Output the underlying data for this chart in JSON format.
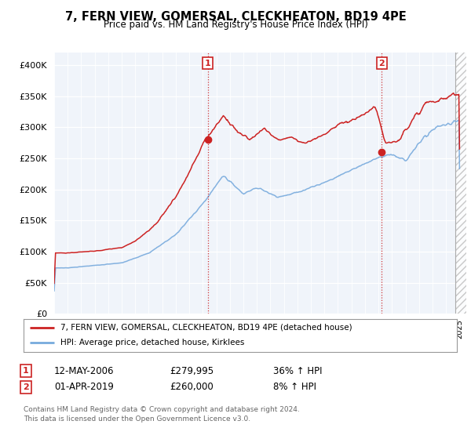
{
  "title": "7, FERN VIEW, GOMERSAL, CLECKHEATON, BD19 4PE",
  "subtitle": "Price paid vs. HM Land Registry's House Price Index (HPI)",
  "bg_color": "#f0f4fa",
  "hpi_color": "#77aadd",
  "price_color": "#cc2222",
  "ylim": [
    0,
    420000
  ],
  "yticks": [
    0,
    50000,
    100000,
    150000,
    200000,
    250000,
    300000,
    350000,
    400000
  ],
  "marker1_date": 2006.37,
  "marker1_price": 279995,
  "marker1_label": "1",
  "marker2_date": 2019.25,
  "marker2_price": 260000,
  "marker2_label": "2",
  "legend_line1": "7, FERN VIEW, GOMERSAL, CLECKHEATON, BD19 4PE (detached house)",
  "legend_line2": "HPI: Average price, detached house, Kirklees",
  "annotation1_date": "12-MAY-2006",
  "annotation1_price": "£279,995",
  "annotation1_change": "36% ↑ HPI",
  "annotation2_date": "01-APR-2019",
  "annotation2_price": "£260,000",
  "annotation2_change": "8% ↑ HPI",
  "footer": "Contains HM Land Registry data © Crown copyright and database right 2024.\nThis data is licensed under the Open Government Licence v3.0."
}
